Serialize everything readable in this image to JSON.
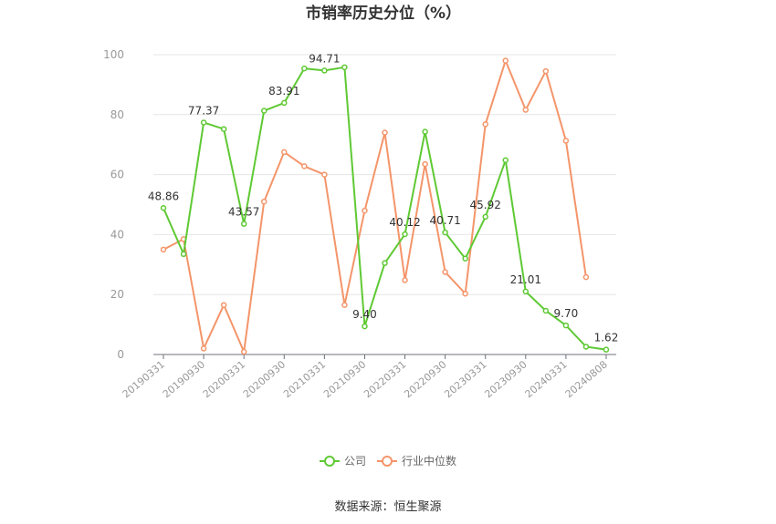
{
  "chart_data": {
    "type": "line",
    "title": "市销率历史分位（%）",
    "ylim": [
      0,
      100
    ],
    "yticks": [
      0,
      20,
      40,
      60,
      80,
      100
    ],
    "grid": true,
    "legend_position": "bottom-center",
    "x": [
      "20190331",
      "20190630",
      "20190930",
      "20191231",
      "20200331",
      "20200630",
      "20200930",
      "20201231",
      "20210331",
      "20210630",
      "20210930",
      "20211231",
      "20220331",
      "20220630",
      "20220930",
      "20221231",
      "20230331",
      "20230630",
      "20230930",
      "20231231",
      "20240331",
      "20240630",
      "20240808"
    ],
    "x_tick_labels": [
      "20190331",
      "",
      "20190930",
      "",
      "20200331",
      "",
      "20200930",
      "",
      "20210331",
      "",
      "20210930",
      "",
      "20220331",
      "",
      "20220930",
      "",
      "20230331",
      "",
      "20230930",
      "",
      "20240331",
      "",
      "20240808"
    ],
    "series": [
      {
        "name": "公司",
        "color": "#5fc934",
        "values": [
          48.86,
          33.5,
          77.37,
          75.2,
          43.57,
          81.3,
          83.91,
          95.4,
          94.71,
          95.8,
          9.4,
          30.5,
          40.12,
          74.3,
          40.71,
          32.0,
          45.92,
          64.8,
          21.01,
          14.6,
          9.7,
          2.6,
          1.62
        ],
        "labels": [
          "48.86",
          "",
          "77.37",
          "",
          "43.57",
          "",
          "83.91",
          "",
          "94.71",
          "",
          "9.40",
          "",
          "40.12",
          "",
          "40.71",
          "",
          "45.92",
          "",
          "21.01",
          "",
          "9.70",
          "",
          "1.62"
        ]
      },
      {
        "name": "行业中位数",
        "color": "#f4956a",
        "values": [
          35.0,
          38.5,
          2.0,
          16.5,
          0.9,
          51.0,
          67.5,
          62.8,
          60.0,
          16.5,
          48.0,
          74.0,
          24.8,
          63.5,
          27.5,
          20.3,
          76.8,
          98.0,
          81.6,
          94.5,
          71.3,
          25.8,
          null
        ]
      }
    ]
  },
  "source": "数据来源：恒生聚源"
}
